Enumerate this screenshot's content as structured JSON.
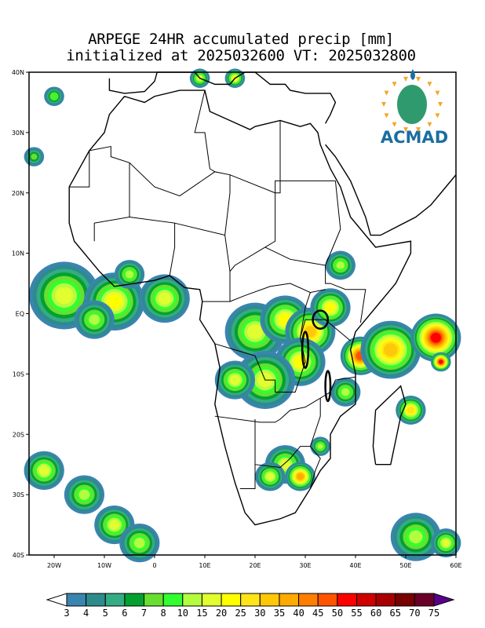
{
  "title": {
    "line1": "ARPEGE 24HR accumulated precip [mm]",
    "line2": "initialized at 2025032600 VT: 2025032800"
  },
  "logo": {
    "text": "ACMAD",
    "color": "#1a6ea0"
  },
  "axes": {
    "lon_range": [
      -25,
      60
    ],
    "lat_range": [
      -40,
      40
    ],
    "lon_ticks": [
      {
        "v": -20,
        "label": "20W"
      },
      {
        "v": -10,
        "label": "10W"
      },
      {
        "v": 0,
        "label": "0"
      },
      {
        "v": 10,
        "label": "10E"
      },
      {
        "v": 20,
        "label": "20E"
      },
      {
        "v": 30,
        "label": "30E"
      },
      {
        "v": 40,
        "label": "40E"
      },
      {
        "v": 50,
        "label": "50E"
      },
      {
        "v": 60,
        "label": "60E"
      }
    ],
    "lat_ticks": [
      {
        "v": 40,
        "label": "40N"
      },
      {
        "v": 30,
        "label": "30N"
      },
      {
        "v": 20,
        "label": "20N"
      },
      {
        "v": 10,
        "label": "10N"
      },
      {
        "v": 0,
        "label": "EQ"
      },
      {
        "v": -10,
        "label": "10S"
      },
      {
        "v": -20,
        "label": "20S"
      },
      {
        "v": -30,
        "label": "30S"
      },
      {
        "v": -40,
        "label": "40S"
      }
    ]
  },
  "colorbar": {
    "labels": [
      "3",
      "4",
      "5",
      "6",
      "7",
      "8",
      "10",
      "15",
      "20",
      "25",
      "30",
      "35",
      "40",
      "45",
      "50",
      "55",
      "60",
      "65",
      "70",
      "75"
    ],
    "colors": [
      "#3a84b0",
      "#2e8b8c",
      "#34ac84",
      "#04a030",
      "#68de30",
      "#32fe30",
      "#b4fc40",
      "#e0fe30",
      "#fefe00",
      "#fee418",
      "#fec808",
      "#feaa00",
      "#fe7e00",
      "#fe5400",
      "#fe0000",
      "#d00000",
      "#a80000",
      "#780000",
      "#6a0028"
    ],
    "under_color": "#ffffff",
    "over_color": "#5a008c"
  },
  "precip_cells": [
    {
      "lon": -18,
      "lat": 3,
      "r": 7,
      "peak": 15
    },
    {
      "lon": -8,
      "lat": 2,
      "r": 6,
      "peak": 20
    },
    {
      "lon": 2,
      "lat": 2.5,
      "r": 5,
      "peak": 15
    },
    {
      "lon": -12,
      "lat": -1,
      "r": 4,
      "peak": 10
    },
    {
      "lon": -5,
      "lat": 6.5,
      "r": 3,
      "peak": 10
    },
    {
      "lon": 20,
      "lat": -3,
      "r": 6,
      "peak": 15
    },
    {
      "lon": 26,
      "lat": -1,
      "r": 5,
      "peak": 20
    },
    {
      "lon": 31,
      "lat": -3,
      "r": 5,
      "peak": 30
    },
    {
      "lon": 29,
      "lat": -8,
      "r": 5,
      "peak": 20
    },
    {
      "lon": 22,
      "lat": -11,
      "r": 6,
      "peak": 15
    },
    {
      "lon": 16,
      "lat": -11,
      "r": 4,
      "peak": 15
    },
    {
      "lon": 35,
      "lat": 1,
      "r": 4,
      "peak": 20
    },
    {
      "lon": 37,
      "lat": 8,
      "r": 3,
      "peak": 10
    },
    {
      "lon": 41,
      "lat": -7,
      "r": 4,
      "peak": 45
    },
    {
      "lon": 47,
      "lat": -6,
      "r": 6,
      "peak": 30
    },
    {
      "lon": 56,
      "lat": -4,
      "r": 5,
      "peak": 50
    },
    {
      "lon": 38,
      "lat": -13,
      "r": 3,
      "peak": 10
    },
    {
      "lon": 51,
      "lat": -16,
      "r": 3,
      "peak": 25
    },
    {
      "lon": 26,
      "lat": -25,
      "r": 4,
      "peak": 15
    },
    {
      "lon": 29,
      "lat": -27,
      "r": 3,
      "peak": 35
    },
    {
      "lon": 23,
      "lat": -27,
      "r": 3,
      "peak": 15
    },
    {
      "lon": 33,
      "lat": -22,
      "r": 2,
      "peak": 10
    },
    {
      "lon": -22,
      "lat": -26,
      "r": 4,
      "peak": 15
    },
    {
      "lon": -14,
      "lat": -30,
      "r": 4,
      "peak": 10
    },
    {
      "lon": -8,
      "lat": -35,
      "r": 4,
      "peak": 15
    },
    {
      "lon": -3,
      "lat": -38,
      "r": 4,
      "peak": 10
    },
    {
      "lon": 52,
      "lat": -37,
      "r": 5,
      "peak": 10
    },
    {
      "lon": 58,
      "lat": -38,
      "r": 3,
      "peak": 15
    },
    {
      "lon": -20,
      "lat": 36,
      "r": 2,
      "peak": 8
    },
    {
      "lon": -24,
      "lat": 26,
      "r": 2,
      "peak": 7
    },
    {
      "lon": 9,
      "lat": 39,
      "r": 2,
      "peak": 15
    },
    {
      "lon": 16,
      "lat": 39,
      "r": 2,
      "peak": 20
    },
    {
      "lon": 57,
      "lat": -8,
      "r": 2,
      "peak": 50
    }
  ]
}
